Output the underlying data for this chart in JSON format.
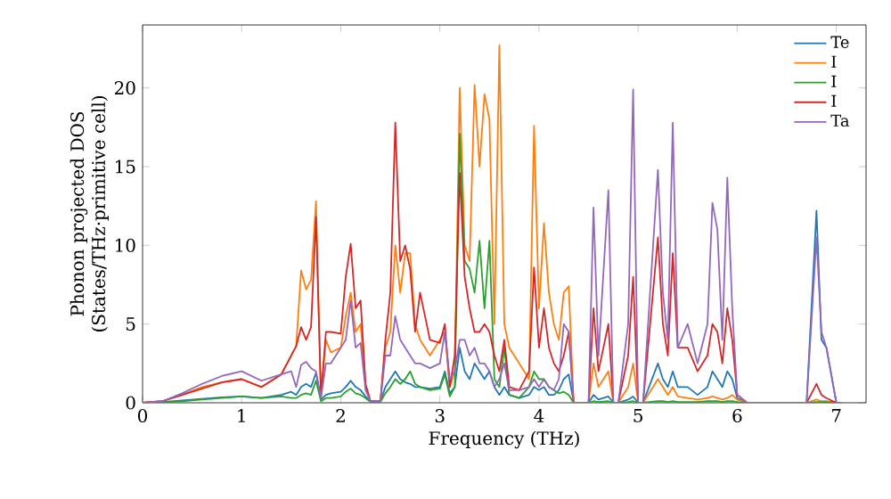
{
  "chart_data": {
    "type": "line",
    "xlabel": "Frequency (THz)",
    "ylabel": "Phonon projected DOS (States/THz·primitive cell)",
    "xlim": [
      0,
      7.3
    ],
    "ylim": [
      0,
      24
    ],
    "xticks": [
      0,
      1,
      2,
      3,
      4,
      5,
      6,
      7
    ],
    "yticks": [
      0,
      5,
      10,
      15,
      20
    ],
    "legend": "top right",
    "x": [
      0,
      0.2,
      0.4,
      0.6,
      0.8,
      1.0,
      1.2,
      1.4,
      1.5,
      1.55,
      1.6,
      1.65,
      1.7,
      1.75,
      1.8,
      1.85,
      1.9,
      2.0,
      2.05,
      2.1,
      2.15,
      2.2,
      2.25,
      2.3,
      2.4,
      2.45,
      2.5,
      2.55,
      2.6,
      2.65,
      2.7,
      2.75,
      2.8,
      2.9,
      3.0,
      3.05,
      3.1,
      3.15,
      3.2,
      3.25,
      3.3,
      3.35,
      3.4,
      3.45,
      3.5,
      3.55,
      3.6,
      3.65,
      3.7,
      3.8,
      3.9,
      3.95,
      4.0,
      4.05,
      4.1,
      4.15,
      4.2,
      4.25,
      4.3,
      4.35,
      4.5,
      4.55,
      4.6,
      4.7,
      4.75,
      4.8,
      4.9,
      4.95,
      5.0,
      5.05,
      5.2,
      5.25,
      5.3,
      5.35,
      5.4,
      5.5,
      5.6,
      5.7,
      5.75,
      5.8,
      5.85,
      5.9,
      5.95,
      6.0,
      6.1,
      6.7,
      6.8,
      6.85,
      6.9,
      7.0,
      7.05
    ],
    "series": [
      {
        "name": "Te",
        "color": "#1f77b4",
        "values": [
          0,
          0.05,
          0.15,
          0.25,
          0.35,
          0.4,
          0.3,
          0.5,
          0.7,
          0.5,
          1.0,
          1.2,
          1.0,
          1.9,
          0.2,
          0.5,
          0.6,
          0.7,
          1.0,
          1.4,
          1.0,
          0.8,
          0.4,
          0.1,
          0.1,
          1.0,
          1.5,
          2.0,
          1.5,
          1.3,
          1.2,
          1.0,
          1.0,
          0.9,
          1.0,
          2.0,
          0.6,
          1.0,
          3.5,
          2.0,
          1.5,
          2.5,
          2.0,
          1.5,
          2.0,
          1.0,
          0.5,
          1.0,
          0.5,
          0.3,
          0.5,
          1.0,
          0.8,
          1.0,
          0.5,
          0.5,
          0.8,
          1.5,
          1.8,
          0,
          0,
          0.5,
          0.2,
          0.4,
          0,
          0,
          0.2,
          0.4,
          0,
          0,
          2.5,
          1.5,
          1.0,
          2.0,
          1.0,
          1.0,
          0.5,
          1.0,
          2.0,
          1.5,
          1.0,
          2.0,
          1.5,
          0.3,
          0,
          0,
          12.2,
          4.0,
          3.5,
          0,
          0
        ]
      },
      {
        "name": "I",
        "color": "#ff7f0e",
        "values": [
          0,
          0.1,
          0.5,
          1.0,
          1.3,
          1.5,
          1.0,
          1.8,
          3.0,
          3.6,
          8.4,
          7.2,
          7.8,
          12.8,
          0.4,
          4.0,
          3.2,
          3.5,
          5.5,
          7.0,
          4.5,
          5.0,
          1.0,
          0.1,
          0.1,
          3.5,
          4.5,
          10.0,
          7.0,
          9.5,
          9.5,
          5.0,
          4.0,
          3.0,
          4.0,
          4.5,
          1.0,
          2.0,
          20.0,
          10.0,
          9.0,
          20.2,
          15.0,
          19.6,
          18.0,
          5.0,
          22.7,
          5.0,
          3.5,
          2.5,
          1.5,
          17.6,
          6.0,
          11.4,
          7.0,
          5.0,
          4.0,
          7.0,
          7.4,
          0,
          0,
          2.5,
          1.0,
          2.0,
          0,
          0,
          1.0,
          2.5,
          0,
          0,
          1.5,
          1.0,
          0.5,
          1.0,
          0.4,
          0.3,
          0.2,
          0.3,
          0.4,
          0.3,
          0.2,
          0.3,
          0.5,
          0.2,
          0,
          0,
          0.2,
          0.1,
          0.1,
          0,
          0
        ]
      },
      {
        "name": "I",
        "color": "#2ca02c",
        "values": [
          0,
          0.02,
          0.1,
          0.2,
          0.3,
          0.4,
          0.3,
          0.4,
          0.3,
          0.3,
          0.5,
          0.6,
          0.5,
          1.4,
          0.1,
          0.3,
          0.3,
          0.4,
          0.7,
          0.9,
          0.6,
          0.5,
          0.3,
          0.05,
          0.05,
          0.6,
          1.0,
          1.5,
          1.2,
          1.5,
          2.0,
          1.2,
          1.0,
          0.8,
          0.9,
          1.8,
          0.4,
          1.0,
          17.1,
          9.0,
          8.5,
          7.0,
          10.3,
          6.0,
          10.3,
          1.5,
          1.0,
          3.5,
          0.5,
          0.3,
          1.0,
          2.0,
          1.5,
          1.5,
          1.0,
          0.8,
          0.6,
          0.7,
          0.5,
          0,
          0,
          0.1,
          0.05,
          0.1,
          0,
          0,
          0.05,
          0.1,
          0,
          0,
          0.1,
          0.1,
          0.05,
          0.1,
          0.05,
          0.05,
          0.05,
          0.1,
          0.1,
          0.1,
          0.05,
          0.1,
          0.1,
          0.05,
          0,
          0,
          0.05,
          0.05,
          0.05,
          0,
          0
        ]
      },
      {
        "name": "I",
        "color": "#d62728",
        "values": [
          0,
          0.1,
          0.5,
          0.9,
          1.3,
          1.5,
          1.0,
          1.8,
          3.0,
          3.6,
          4.8,
          4.0,
          4.8,
          11.8,
          0.4,
          4.5,
          4.5,
          4.4,
          8.0,
          10.1,
          6.0,
          6.5,
          1.2,
          0.1,
          0.1,
          4.0,
          7.0,
          17.8,
          9.0,
          10.0,
          8.5,
          4.5,
          7.0,
          4.0,
          3.8,
          5.0,
          1.0,
          3.0,
          14.6,
          8.0,
          6.0,
          4.5,
          4.5,
          5.0,
          4.5,
          3.0,
          2.0,
          4.0,
          1.0,
          0.8,
          2.0,
          8.6,
          3.5,
          6.0,
          3.5,
          2.5,
          2.0,
          3.0,
          4.5,
          0,
          0,
          6.0,
          2.0,
          5.0,
          0,
          0,
          3.0,
          8.0,
          0,
          0,
          10.5,
          5.0,
          3.0,
          9.5,
          3.5,
          3.5,
          2.0,
          3.0,
          5.0,
          4.5,
          2.5,
          6.0,
          4.0,
          0.5,
          0,
          0,
          1.2,
          0.5,
          0.3,
          0,
          0
        ]
      },
      {
        "name": "Ta",
        "color": "#9467bd",
        "values": [
          0,
          0.1,
          0.6,
          1.2,
          1.7,
          2.0,
          1.4,
          1.8,
          2.0,
          1.0,
          2.4,
          2.6,
          2.2,
          2.0,
          0.3,
          2.5,
          2.5,
          3.5,
          4.0,
          6.5,
          3.5,
          3.8,
          0.8,
          0.1,
          0.1,
          3.0,
          3.0,
          5.5,
          4.0,
          3.5,
          3.0,
          2.5,
          2.5,
          2.2,
          2.5,
          4.5,
          1.5,
          2.0,
          4.0,
          4.0,
          3.0,
          3.5,
          2.5,
          2.5,
          2.0,
          1.0,
          1.5,
          2.5,
          0.8,
          0.8,
          1.0,
          1.5,
          1.0,
          1.5,
          1.0,
          0.8,
          1.5,
          5.0,
          4.5,
          0,
          0,
          12.4,
          3.0,
          13.5,
          0,
          0,
          5.0,
          19.9,
          0,
          0,
          14.8,
          7.0,
          4.0,
          17.8,
          3.5,
          5.0,
          2.5,
          5.0,
          12.7,
          11.0,
          4.0,
          14.3,
          6.0,
          0.5,
          0,
          0,
          10.5,
          4.5,
          3.5,
          0,
          0
        ]
      }
    ]
  }
}
